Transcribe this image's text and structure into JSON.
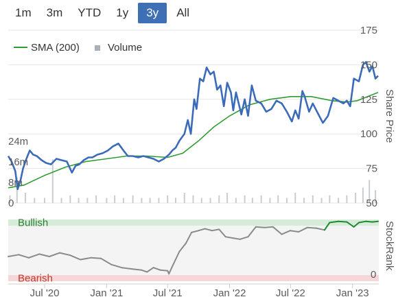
{
  "range_selector": {
    "buttons": [
      "1m",
      "3m",
      "YTD",
      "1y",
      "3y",
      "All"
    ],
    "active": "3y"
  },
  "legend": {
    "sma_label": "SMA (200)",
    "volume_label": "Volume"
  },
  "colors": {
    "price": "#3b6bb8",
    "sma": "#2f9c2f",
    "volume": "#c9cdd3",
    "bullish_zone": "#d6ecd9",
    "bearish_zone": "#f6d6d9",
    "bullish_text": "#2e7d32",
    "bearish_text": "#c0392b",
    "rank_neutral": "#8a8a8a",
    "rank_bull": "#1e8a2e",
    "rank_bear": "#d23a3a"
  },
  "right_axis_labels": {
    "price_title": "Share Price",
    "rank_title": "StockRank"
  },
  "chart_data": [
    {
      "type": "line",
      "title": "",
      "ylabel": "Share Price",
      "ylim": [
        50,
        175
      ],
      "yticks": [
        "175",
        "150",
        "125",
        "100",
        "75",
        "50"
      ],
      "volume_ticks": [
        "24m",
        "16m",
        "8m",
        "0"
      ],
      "volume_ylim": [
        0,
        32
      ],
      "x_ticks": [
        "Jul '20",
        "Jan '21",
        "Jul '21",
        "Jan '22",
        "Jul '22",
        "Jan '23"
      ],
      "x_tick_dates": [
        "2020-07-01",
        "2021-01-01",
        "2021-07-01",
        "2022-01-01",
        "2022-07-01",
        "2023-01-01"
      ],
      "x_range": [
        "2020-03-15",
        "2023-03-20"
      ],
      "series": [
        {
          "name": "",
          "kind": "price",
          "points": [
            [
              "2020-03-15",
              84
            ],
            [
              "2020-03-25",
              80
            ],
            [
              "2020-04-05",
              73
            ],
            [
              "2020-04-12",
              60
            ],
            [
              "2020-04-20",
              66
            ],
            [
              "2020-04-28",
              75
            ],
            [
              "2020-05-08",
              82
            ],
            [
              "2020-05-18",
              88
            ],
            [
              "2020-05-28",
              85
            ],
            [
              "2020-06-08",
              84
            ],
            [
              "2020-06-22",
              81
            ],
            [
              "2020-07-05",
              79
            ],
            [
              "2020-07-20",
              78
            ],
            [
              "2020-08-05",
              82
            ],
            [
              "2020-08-20",
              81
            ],
            [
              "2020-09-05",
              80
            ],
            [
              "2020-09-20",
              72
            ],
            [
              "2020-10-01",
              77
            ],
            [
              "2020-10-12",
              78
            ],
            [
              "2020-10-25",
              81
            ],
            [
              "2020-11-08",
              83
            ],
            [
              "2020-11-20",
              83
            ],
            [
              "2020-12-05",
              85
            ],
            [
              "2020-12-20",
              86
            ],
            [
              "2021-01-05",
              88
            ],
            [
              "2021-01-20",
              91
            ],
            [
              "2021-02-05",
              93
            ],
            [
              "2021-02-20",
              88
            ],
            [
              "2021-03-05",
              84
            ],
            [
              "2021-03-20",
              84
            ],
            [
              "2021-04-05",
              83
            ],
            [
              "2021-04-20",
              84
            ],
            [
              "2021-05-05",
              83
            ],
            [
              "2021-05-20",
              82
            ],
            [
              "2021-06-05",
              80
            ],
            [
              "2021-06-20",
              82
            ],
            [
              "2021-07-05",
              85
            ],
            [
              "2021-07-15",
              88
            ],
            [
              "2021-07-25",
              90
            ],
            [
              "2021-08-05",
              95
            ],
            [
              "2021-08-20",
              100
            ],
            [
              "2021-08-30",
              110
            ],
            [
              "2021-09-08",
              100
            ],
            [
              "2021-09-18",
              125
            ],
            [
              "2021-09-25",
              118
            ],
            [
              "2021-10-05",
              140
            ],
            [
              "2021-10-15",
              138
            ],
            [
              "2021-10-25",
              148
            ],
            [
              "2021-11-05",
              143
            ],
            [
              "2021-11-15",
              145
            ],
            [
              "2021-11-25",
              132
            ],
            [
              "2021-12-05",
              135
            ],
            [
              "2021-12-15",
              120
            ],
            [
              "2021-12-25",
              137
            ],
            [
              "2022-01-05",
              130
            ],
            [
              "2022-01-12",
              117
            ],
            [
              "2022-01-20",
              130
            ],
            [
              "2022-01-28",
              122
            ],
            [
              "2022-02-05",
              114
            ],
            [
              "2022-02-15",
              125
            ],
            [
              "2022-02-25",
              113
            ],
            [
              "2022-03-08",
              135
            ],
            [
              "2022-03-20",
              124
            ],
            [
              "2022-04-05",
              122
            ],
            [
              "2022-04-20",
              116
            ],
            [
              "2022-05-05",
              118
            ],
            [
              "2022-05-20",
              124
            ],
            [
              "2022-06-05",
              122
            ],
            [
              "2022-06-20",
              116
            ],
            [
              "2022-07-05",
              109
            ],
            [
              "2022-07-15",
              117
            ],
            [
              "2022-07-25",
              111
            ],
            [
              "2022-08-05",
              131
            ],
            [
              "2022-08-12",
              127
            ],
            [
              "2022-08-25",
              116
            ],
            [
              "2022-09-05",
              122
            ],
            [
              "2022-09-20",
              115
            ],
            [
              "2022-10-05",
              108
            ],
            [
              "2022-10-20",
              113
            ],
            [
              "2022-11-05",
              126
            ],
            [
              "2022-11-20",
              124
            ],
            [
              "2022-12-05",
              122
            ],
            [
              "2022-12-15",
              124
            ],
            [
              "2022-12-25",
              120
            ],
            [
              "2023-01-05",
              140
            ],
            [
              "2023-01-20",
              138
            ],
            [
              "2023-02-01",
              150
            ],
            [
              "2023-02-10",
              152
            ],
            [
              "2023-02-20",
              145
            ],
            [
              "2023-03-01",
              149
            ],
            [
              "2023-03-10",
              140
            ],
            [
              "2023-03-18",
              142
            ]
          ]
        },
        {
          "name": "SMA (200)",
          "kind": "sma",
          "points": [
            [
              "2020-03-15",
              61
            ],
            [
              "2020-05-01",
              63
            ],
            [
              "2020-07-01",
              70
            ],
            [
              "2020-09-01",
              76
            ],
            [
              "2020-11-01",
              80
            ],
            [
              "2021-01-01",
              82
            ],
            [
              "2021-03-01",
              84
            ],
            [
              "2021-05-01",
              84
            ],
            [
              "2021-07-01",
              83
            ],
            [
              "2021-08-15",
              86
            ],
            [
              "2021-10-01",
              95
            ],
            [
              "2021-11-15",
              105
            ],
            [
              "2022-01-01",
              113
            ],
            [
              "2022-03-01",
              121
            ],
            [
              "2022-05-01",
              125
            ],
            [
              "2022-07-01",
              127
            ],
            [
              "2022-09-01",
              127
            ],
            [
              "2022-11-01",
              124
            ],
            [
              "2022-12-15",
              123
            ],
            [
              "2023-01-15",
              124
            ],
            [
              "2023-02-15",
              127
            ],
            [
              "2023-03-18",
              130
            ]
          ]
        },
        {
          "name": "Volume",
          "kind": "volume",
          "points": [
            [
              "2020-03-20",
              3
            ],
            [
              "2020-04-10",
              10
            ],
            [
              "2020-05-05",
              4
            ],
            [
              "2020-06-01",
              2
            ],
            [
              "2020-07-01",
              2
            ],
            [
              "2020-07-25",
              17
            ],
            [
              "2020-08-20",
              2
            ],
            [
              "2020-09-15",
              3
            ],
            [
              "2020-10-10",
              2
            ],
            [
              "2020-11-05",
              2
            ],
            [
              "2020-12-01",
              3
            ],
            [
              "2021-01-01",
              2
            ],
            [
              "2021-01-25",
              3
            ],
            [
              "2021-02-20",
              2
            ],
            [
              "2021-03-20",
              3
            ],
            [
              "2021-04-15",
              2
            ],
            [
              "2021-05-10",
              2
            ],
            [
              "2021-06-05",
              2
            ],
            [
              "2021-07-01",
              3
            ],
            [
              "2021-07-25",
              2
            ],
            [
              "2021-08-20",
              4
            ],
            [
              "2021-09-15",
              3
            ],
            [
              "2021-10-10",
              2
            ],
            [
              "2021-11-05",
              2
            ],
            [
              "2021-12-01",
              3
            ],
            [
              "2021-12-25",
              4
            ],
            [
              "2022-01-20",
              2
            ],
            [
              "2022-02-15",
              3
            ],
            [
              "2022-03-10",
              2
            ],
            [
              "2022-04-05",
              3
            ],
            [
              "2022-05-01",
              2
            ],
            [
              "2022-05-25",
              3
            ],
            [
              "2022-06-20",
              2
            ],
            [
              "2022-07-15",
              4
            ],
            [
              "2022-08-10",
              2
            ],
            [
              "2022-09-05",
              3
            ],
            [
              "2022-10-01",
              2
            ],
            [
              "2022-10-25",
              3
            ],
            [
              "2022-11-20",
              2
            ],
            [
              "2022-12-15",
              3
            ],
            [
              "2023-01-10",
              4
            ],
            [
              "2023-02-01",
              6
            ],
            [
              "2023-02-20",
              9
            ],
            [
              "2023-03-10",
              5
            ]
          ]
        }
      ]
    },
    {
      "type": "line",
      "title": "",
      "ylabel": "StockRank",
      "ylim": [
        0,
        100
      ],
      "yticks": [
        "0"
      ],
      "zones": [
        {
          "label": "Bullish",
          "from": 90,
          "to": 100
        },
        {
          "label": "Bearish",
          "from": 0,
          "to": 10
        }
      ],
      "series": [
        {
          "name": "StockRank",
          "points": [
            [
              "2020-03-15",
              40
            ],
            [
              "2020-04-15",
              43
            ],
            [
              "2020-05-15",
              38
            ],
            [
              "2020-06-15",
              44
            ],
            [
              "2020-07-15",
              40
            ],
            [
              "2020-08-15",
              46
            ],
            [
              "2020-09-15",
              42
            ],
            [
              "2020-10-15",
              35
            ],
            [
              "2020-11-15",
              38
            ],
            [
              "2020-12-15",
              37
            ],
            [
              "2021-01-15",
              27
            ],
            [
              "2021-02-15",
              22
            ],
            [
              "2021-03-15",
              20
            ],
            [
              "2021-04-15",
              18
            ],
            [
              "2021-05-01",
              15
            ],
            [
              "2021-05-20",
              22
            ],
            [
              "2021-06-10",
              18
            ],
            [
              "2021-07-01",
              17
            ],
            [
              "2021-07-05",
              12
            ],
            [
              "2021-07-15",
              24
            ],
            [
              "2021-08-05",
              48
            ],
            [
              "2021-08-25",
              62
            ],
            [
              "2021-09-10",
              79
            ],
            [
              "2021-10-01",
              82
            ],
            [
              "2021-10-20",
              85
            ],
            [
              "2021-11-10",
              82
            ],
            [
              "2021-12-01",
              84
            ],
            [
              "2021-12-20",
              72
            ],
            [
              "2022-01-10",
              70
            ],
            [
              "2022-02-01",
              68
            ],
            [
              "2022-02-25",
              72
            ],
            [
              "2022-03-20",
              88
            ],
            [
              "2022-04-15",
              87
            ],
            [
              "2022-05-10",
              88
            ],
            [
              "2022-06-05",
              76
            ],
            [
              "2022-06-30",
              82
            ],
            [
              "2022-07-25",
              80
            ],
            [
              "2022-08-20",
              87
            ],
            [
              "2022-09-15",
              86
            ],
            [
              "2022-10-10",
              83
            ],
            [
              "2022-10-25",
              95
            ],
            [
              "2022-11-20",
              97
            ],
            [
              "2022-12-15",
              96
            ],
            [
              "2023-01-05",
              88
            ],
            [
              "2023-01-20",
              95
            ],
            [
              "2023-02-10",
              97
            ],
            [
              "2023-03-01",
              96
            ],
            [
              "2023-03-18",
              97
            ]
          ]
        }
      ]
    }
  ]
}
